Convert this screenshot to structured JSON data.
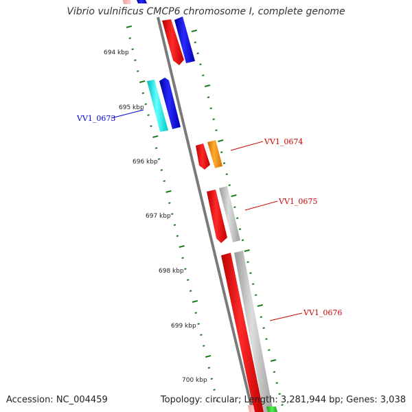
{
  "title": "Vibrio vulnificus CMCP6 chromosome I, complete genome",
  "footer": {
    "accession": "Accession: NC_004459",
    "summary": "Topology: circular; Length: 3,281,944 bp; Genes: 3,038"
  },
  "colors": {
    "tick": "#1a7a1a",
    "backbone": "#888888",
    "gene_red": "#ff0000",
    "gene_blue": "#0000ff",
    "gene_cyan": "#00ffff",
    "gene_orange": "#ff9900",
    "gene_gray": "#bbbbbb",
    "label_red": "#cc0000",
    "label_blue": "#0000cc"
  },
  "scale": {
    "unit": "kbp",
    "labels": [
      "694 kbp",
      "695 kbp",
      "696 kbp",
      "697 kbp",
      "698 kbp",
      "699 kbp",
      "700 kbp"
    ]
  },
  "gene_labels": [
    {
      "text": "VV1_0673",
      "color": "blue"
    },
    {
      "text": "VV1_0674",
      "color": "red"
    },
    {
      "text": "VV1_0675",
      "color": "red"
    },
    {
      "text": "VV1_0676",
      "color": "red"
    }
  ]
}
